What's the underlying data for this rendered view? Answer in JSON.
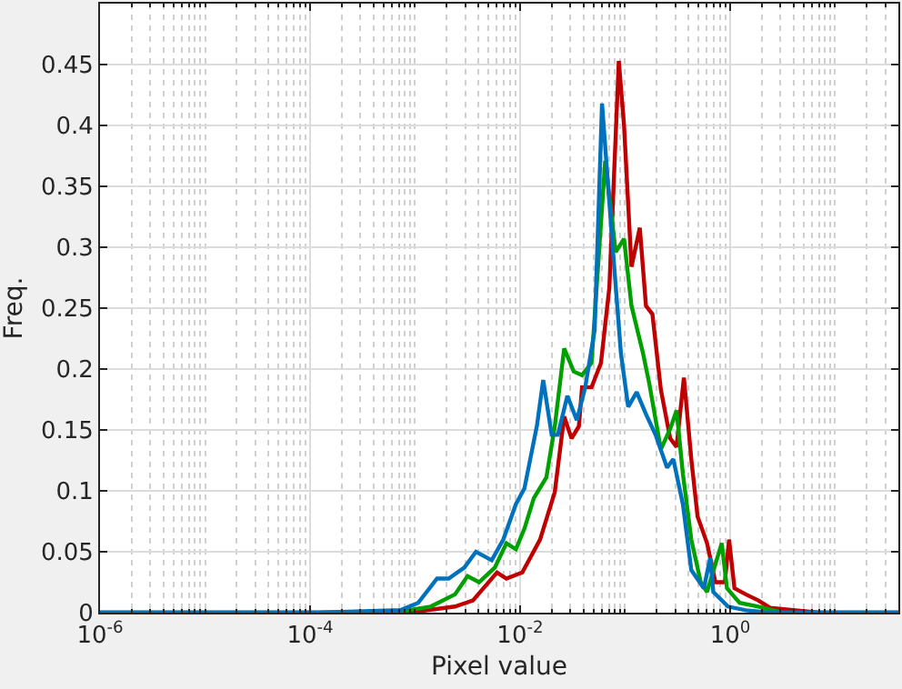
{
  "chart_data": {
    "type": "line",
    "xlabel": "Pixel value",
    "ylabel": "Freq.",
    "log": "x",
    "grid": true,
    "marker": "none",
    "line_style": "solid",
    "xlim": [
      1e-06,
      40
    ],
    "ylim": [
      0,
      0.5
    ],
    "xticks": [
      {
        "value": 1e-06,
        "label": "10$^{-6}$"
      },
      {
        "value": 0.0001,
        "label": "10$^{-4}$"
      },
      {
        "value": 0.01,
        "label": "10$^{-2}$"
      },
      {
        "value": 1,
        "label": "10$^{0}$"
      }
    ],
    "yticks": [
      0,
      0.05,
      0.1,
      0.15,
      0.2,
      0.25,
      0.3,
      0.35,
      0.4,
      0.45
    ],
    "series": [
      {
        "color": "#c00000",
        "x": [
          1e-06,
          0.00012,
          0.00107,
          0.0024,
          0.00355,
          0.00603,
          0.00741,
          0.0105,
          0.0155,
          0.0214,
          0.0263,
          0.0309,
          0.0363,
          0.0389,
          0.0479,
          0.0589,
          0.0708,
          0.0871,
          0.0977,
          0.115,
          0.138,
          0.158,
          0.182,
          0.219,
          0.269,
          0.309,
          0.363,
          0.427,
          0.49,
          0.603,
          0.724,
          0.891,
          0.977,
          1.1,
          1.41,
          1.86,
          2.4,
          4.17,
          7.08,
          40
        ],
        "values": [
          0,
          0,
          0.001,
          0.005,
          0.01,
          0.033,
          0.028,
          0.033,
          0.06,
          0.099,
          0.161,
          0.143,
          0.153,
          0.185,
          0.185,
          0.205,
          0.267,
          0.453,
          0.4,
          0.284,
          0.316,
          0.252,
          0.245,
          0.183,
          0.143,
          0.136,
          0.193,
          0.126,
          0.079,
          0.057,
          0.025,
          0.025,
          0.06,
          0.02,
          0.015,
          0.01,
          0.004,
          0.002,
          0,
          0
        ]
      },
      {
        "color": "#00a000",
        "x": [
          1e-06,
          0.00012,
          0.000724,
          0.00141,
          0.0024,
          0.00316,
          0.00407,
          0.00575,
          0.00741,
          0.00912,
          0.011,
          0.0135,
          0.0178,
          0.0214,
          0.0263,
          0.0324,
          0.0389,
          0.0479,
          0.0646,
          0.0813,
          0.0977,
          0.115,
          0.148,
          0.17,
          0.219,
          0.269,
          0.309,
          0.355,
          0.427,
          0.525,
          0.603,
          0.832,
          0.933,
          1.23,
          1.86,
          3.16,
          40
        ],
        "values": [
          0,
          0,
          0.001,
          0.005,
          0.015,
          0.03,
          0.025,
          0.037,
          0.057,
          0.052,
          0.069,
          0.094,
          0.111,
          0.153,
          0.217,
          0.198,
          0.195,
          0.205,
          0.371,
          0.296,
          0.307,
          0.252,
          0.213,
          0.188,
          0.134,
          0.151,
          0.166,
          0.114,
          0.06,
          0.025,
          0.017,
          0.057,
          0.02,
          0.008,
          0.005,
          0,
          0
        ]
      },
      {
        "color": "#0072bd",
        "x": [
          1e-06,
          0.00012,
          0.000724,
          0.00107,
          0.00162,
          0.00209,
          0.00295,
          0.0038,
          0.00537,
          0.00692,
          0.00912,
          0.011,
          0.0145,
          0.0166,
          0.02,
          0.0229,
          0.0282,
          0.0347,
          0.0417,
          0.0513,
          0.0603,
          0.0759,
          0.0912,
          0.107,
          0.129,
          0.158,
          0.195,
          0.251,
          0.288,
          0.355,
          0.427,
          0.562,
          0.646,
          0.692,
          0.955,
          1.41,
          2.4,
          40
        ],
        "values": [
          0,
          0,
          0.002,
          0.008,
          0.028,
          0.028,
          0.037,
          0.05,
          0.043,
          0.06,
          0.089,
          0.102,
          0.154,
          0.191,
          0.146,
          0.146,
          0.178,
          0.158,
          0.185,
          0.232,
          0.418,
          0.302,
          0.213,
          0.169,
          0.181,
          0.163,
          0.146,
          0.119,
          0.126,
          0.089,
          0.035,
          0.02,
          0.045,
          0.017,
          0.005,
          0.002,
          0,
          0
        ]
      }
    ]
  }
}
